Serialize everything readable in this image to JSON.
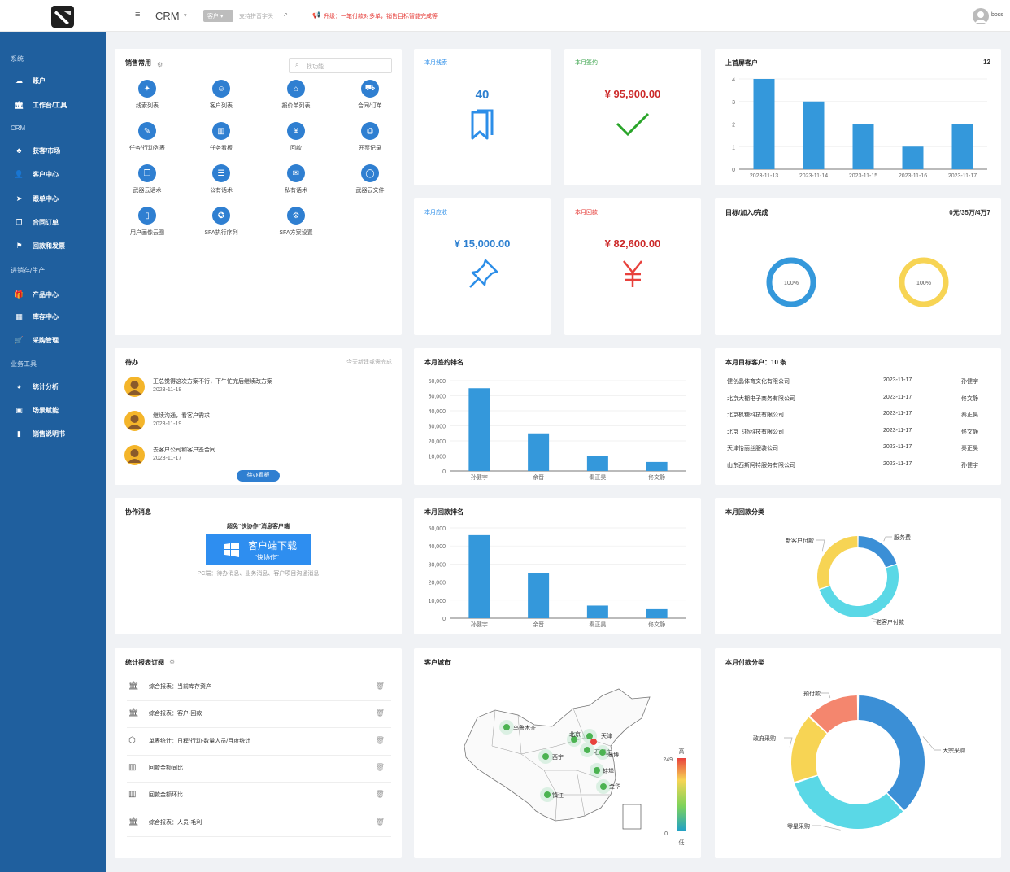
{
  "app": {
    "name": "CRM",
    "user": "boss",
    "customer_select": "客户",
    "search_placeholder": "支持拼音字头",
    "notice": "升级：一笔付款对多单，销售目标智能完成等"
  },
  "sidebar": [
    {
      "type": "section",
      "label": "系统"
    },
    {
      "type": "item",
      "label": "账户",
      "icon": "cloud-icon"
    },
    {
      "type": "item",
      "label": "工作台/工具",
      "icon": "bank-icon"
    },
    {
      "type": "section",
      "label": "CRM"
    },
    {
      "type": "item",
      "label": "获客/市场",
      "icon": "tree-icon"
    },
    {
      "type": "item",
      "label": "客户中心",
      "icon": "user-icon"
    },
    {
      "type": "item",
      "label": "跟单中心",
      "icon": "send-icon"
    },
    {
      "type": "item",
      "label": "合同订单",
      "icon": "copy-icon"
    },
    {
      "type": "item",
      "label": "回款和发票",
      "icon": "flag-icon"
    },
    {
      "type": "section",
      "label": "进销存/生产"
    },
    {
      "type": "item",
      "label": "产品中心",
      "icon": "gift-icon"
    },
    {
      "type": "item",
      "label": "库存中心",
      "icon": "table-icon"
    },
    {
      "type": "item",
      "label": "采购管理",
      "icon": "cart-icon"
    },
    {
      "type": "section",
      "label": "业务工具"
    },
    {
      "type": "item",
      "label": "统计分析",
      "icon": "pie-icon"
    },
    {
      "type": "item",
      "label": "场景赋能",
      "icon": "image-icon"
    },
    {
      "type": "item",
      "label": "销售说明书",
      "icon": "book-icon"
    }
  ],
  "quick": {
    "title": "销售常用",
    "search_placeholder": "找功能",
    "items": [
      "线索列表",
      "客户列表",
      "报价单列表",
      "合同/订单",
      "任务/行动列表",
      "任务看板",
      "回款",
      "开票记录",
      "武器云话术",
      "公有话术",
      "私有话术",
      "武器云文件",
      "用户画像云图",
      "SFA执行序列",
      "SFA方案设置"
    ],
    "icons": [
      "magic-icon",
      "users-icon",
      "tag-icon",
      "cart-icon",
      "edit-icon",
      "board-icon",
      "yen-icon",
      "print-icon",
      "bookmark-icon",
      "chat-icon",
      "message-icon",
      "comment-icon",
      "book-icon",
      "person-icon",
      "gear-icon"
    ]
  },
  "stats": {
    "leads": {
      "title": "本月线索",
      "value": "40"
    },
    "signed": {
      "title": "本月签约",
      "value": "¥ 95,900.00"
    },
    "receivable": {
      "title": "本月应收",
      "value": "¥ 15,000.00"
    },
    "collected": {
      "title": "本月回款",
      "value": "¥ 82,600.00"
    }
  },
  "top_customers": {
    "title": "上首屏客户",
    "count": "12"
  },
  "target": {
    "title": "目标/加入/完成",
    "value": "0元/35万/4万7",
    "ring1": "100%",
    "ring2": "100%"
  },
  "todo": {
    "title": "待办",
    "hint": "今天新建或需完成",
    "items": [
      {
        "text": "王总觉得这次方案不行，下午忙完后继续改方案",
        "date": "2023-11-18"
      },
      {
        "text": "继续沟通，看客户需求",
        "date": "2023-11-19"
      },
      {
        "text": "去客户公司和客户签合同",
        "date": "2023-11-17"
      }
    ],
    "board_btn": "待办看板"
  },
  "sign_rank": {
    "title": "本月签约排名"
  },
  "pay_rank": {
    "title": "本月回款排名"
  },
  "target_customers": {
    "title": "本月目标客户：10 条",
    "rows": [
      [
        "健创晶体育文化有限公司",
        "2023-11-17",
        "孙健宇"
      ],
      [
        "北京大棚电子商务有限公司",
        "2023-11-17",
        "佟文静"
      ],
      [
        "北京枫糖科技有限公司",
        "2023-11-17",
        "秦正昊"
      ],
      [
        "北京飞扬科技有限公司",
        "2023-11-17",
        "佟文静"
      ],
      [
        "天津怡丽丝服装公司",
        "2023-11-17",
        "秦正昊"
      ],
      [
        "山东西斯阿特服务有限公司",
        "2023-11-17",
        "孙健宇"
      ]
    ]
  },
  "collab": {
    "title": "协作消息",
    "subtitle": "超免“快协作”消息客户端",
    "btn_line1": "客户端下载",
    "btn_line2": "\"快协作\"",
    "desc": "PC端：待办消息、业务消息、客户项目沟通消息"
  },
  "pay_category": {
    "title": "本月回款分类"
  },
  "reports": {
    "title": "统计报表订阅",
    "items": [
      {
        "label": "综合报表：当前库存资产",
        "icon": "bank-icon"
      },
      {
        "label": "综合报表：客户-回款",
        "icon": "bank-icon"
      },
      {
        "label": "单表统计：日程/行动-数量人员/月度统计",
        "icon": "cube-icon"
      },
      {
        "label": "回款金额同比",
        "icon": "bar-chart-icon"
      },
      {
        "label": "回款金额环比",
        "icon": "bar-chart-icon"
      },
      {
        "label": "综合报表：人员-毛利",
        "icon": "bank-icon"
      }
    ]
  },
  "city_map": {
    "title": "客户城市",
    "cities": [
      "乌鲁木齐",
      "西宁",
      "北京",
      "天津",
      "石家庄",
      "淄博",
      "蚌埠",
      "金华",
      "镇江"
    ],
    "legend_high": "高",
    "legend_low": "低",
    "legend_max": "249",
    "legend_min": "0"
  },
  "pay_type": {
    "title": "本月付款分类"
  },
  "chart_data": [
    {
      "type": "bar",
      "title": "上首屏客户",
      "categories": [
        "2023-11-13",
        "2023-11-14",
        "2023-11-15",
        "2023-11-16",
        "2023-11-17"
      ],
      "values": [
        4,
        3,
        2,
        1,
        2
      ],
      "ylim": [
        0,
        4
      ]
    },
    {
      "type": "bar",
      "title": "本月签约排名",
      "categories": [
        "孙健宇",
        "余晋",
        "秦正昊",
        "佟文静"
      ],
      "values": [
        55000,
        25000,
        10000,
        6000
      ],
      "ylim": [
        0,
        60000
      ]
    },
    {
      "type": "bar",
      "title": "本月回款排名",
      "categories": [
        "孙健宇",
        "余晋",
        "秦正昊",
        "佟文静"
      ],
      "values": [
        46000,
        25000,
        7000,
        5000
      ],
      "ylim": [
        0,
        50000
      ]
    },
    {
      "type": "pie",
      "title": "本月回款分类",
      "categories": [
        "服务费",
        "老客户付款",
        "新客户付款"
      ],
      "values": [
        20,
        50,
        30
      ],
      "colors": [
        "#3b8fd6",
        "#5ad8e6",
        "#f7d454"
      ]
    },
    {
      "type": "pie",
      "title": "本月付款分类",
      "categories": [
        "大宗采购",
        "零星采购",
        "政府采购",
        "预付款"
      ],
      "values": [
        38,
        32,
        17,
        13
      ],
      "colors": [
        "#3b8fd6",
        "#5ad8e6",
        "#f7d454",
        "#f4866e"
      ]
    }
  ],
  "colors": {
    "primary": "#2f7fd1",
    "sidebar": "#1f5f9e",
    "bar": "#3498db",
    "red": "#e8413c",
    "green": "#2aa52a"
  }
}
